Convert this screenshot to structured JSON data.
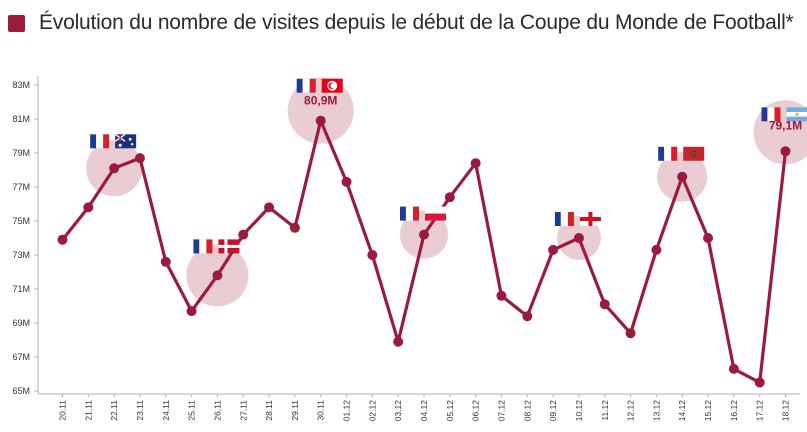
{
  "title": "Évolution du nombre de visites depuis le début de la Coupe du Monde de Football*",
  "colors": {
    "accent": "#9b1b3c",
    "bubble": "#e6c3cb",
    "axis": "#b0b0b0",
    "flag_blue": "#1f3a93",
    "flag_red": "#d6202a"
  },
  "chart_data": {
    "type": "line",
    "title": "Évolution du nombre de visites depuis le début de la Coupe du Monde de Football*",
    "xlabel": "",
    "ylabel": "",
    "ylim": [
      65,
      83.5
    ],
    "y_ticks": [
      "83M",
      "81M",
      "79M",
      "77M",
      "75M",
      "73M",
      "71M",
      "69M",
      "67M",
      "65M"
    ],
    "y_tick_values": [
      83,
      81,
      79,
      77,
      75,
      73,
      71,
      69,
      67,
      65
    ],
    "grid": false,
    "unit": "M",
    "categories": [
      "20.11",
      "21.11",
      "22.11",
      "23.11",
      "24.11",
      "25.11",
      "26.11",
      "27.11",
      "28.11",
      "29.11",
      "30.11",
      "01.12",
      "02.12",
      "03.12",
      "04.12",
      "05.12",
      "06.12",
      "07.12",
      "08.12",
      "09.12",
      "10.12",
      "11.12",
      "12.12",
      "13.12",
      "14.12",
      "15.12",
      "16.12",
      "17.12",
      "18.12"
    ],
    "series": [
      {
        "values": [
          73.9,
          75.8,
          78.1,
          78.7,
          72.6,
          69.7,
          71.8,
          74.2,
          75.8,
          74.6,
          80.9,
          77.3,
          73.0,
          67.9,
          74.2,
          76.4,
          78.4,
          70.6,
          69.4,
          73.3,
          74.0,
          70.1,
          68.4,
          73.3,
          77.6,
          74.0,
          66.3,
          65.5,
          79.1
        ]
      }
    ],
    "annotations": [
      {
        "index": 2,
        "flags": [
          "france",
          "australia"
        ]
      },
      {
        "index": 6,
        "flags": [
          "france",
          "denmark"
        ]
      },
      {
        "index": 10,
        "flags": [
          "france",
          "tunisia"
        ],
        "label": "80,9M"
      },
      {
        "index": 14,
        "flags": [
          "france",
          "poland"
        ]
      },
      {
        "index": 20,
        "flags": [
          "france",
          "england"
        ]
      },
      {
        "index": 24,
        "flags": [
          "france",
          "morocco"
        ]
      },
      {
        "index": 28,
        "flags": [
          "france",
          "argentina"
        ],
        "label": "79,1M"
      }
    ]
  }
}
